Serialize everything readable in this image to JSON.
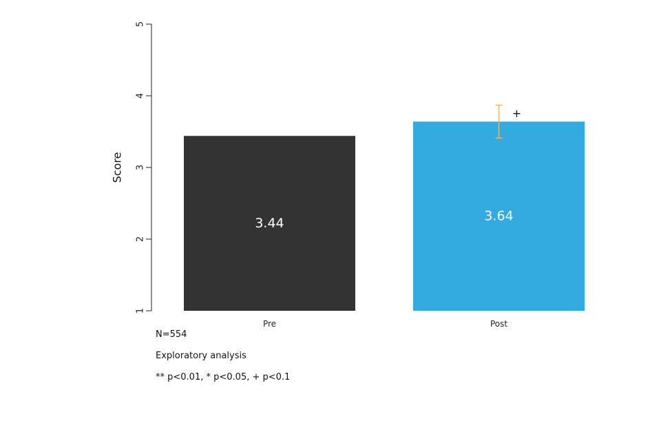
{
  "chart_data": {
    "type": "bar",
    "title": "",
    "xlabel": "",
    "ylabel": "Score",
    "ylim": [
      1,
      5
    ],
    "yticks": [
      1,
      2,
      3,
      4,
      5
    ],
    "categories": [
      "Pre",
      "Post"
    ],
    "values": [
      3.44,
      3.64
    ],
    "value_labels": [
      "3.44",
      "3.64"
    ],
    "colors": [
      "#333333",
      "#33abe0"
    ],
    "value_label_color": "#ffffff",
    "error_bars": [
      null,
      {
        "low": 3.41,
        "high": 3.87,
        "color": "#e8b56a"
      }
    ],
    "significance": [
      null,
      "+"
    ],
    "grid": false
  },
  "notes": {
    "n": "N=554",
    "analysis": "Exploratory analysis",
    "legend": "** p<0.01, * p<0.05, + p<0.1"
  }
}
